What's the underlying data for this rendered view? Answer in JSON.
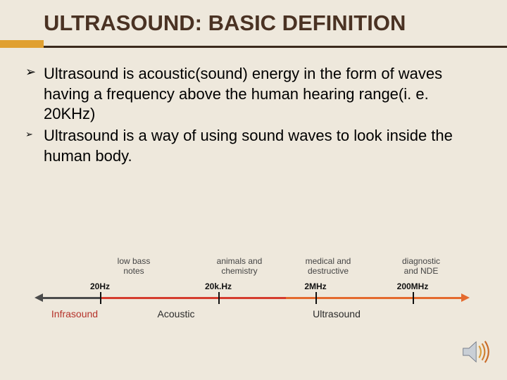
{
  "title": "ULTRASOUND: BASIC DEFINITION",
  "bullets": [
    "Ultrasound is acoustic(sound) energy in the form of waves having a frequency above the human hearing range(i. e. 20KHz)",
    " Ultrasound is a way of using sound waves to look inside the human body."
  ],
  "spectrum": {
    "axis_segments": [
      {
        "width_pct": 14,
        "color": "#4b4b4b"
      },
      {
        "width_pct": 44,
        "color": "#d53c2e"
      },
      {
        "width_pct": 42,
        "color": "#e46a2e"
      }
    ],
    "ticks": [
      {
        "pos_pct": 14,
        "label": "20Hz"
      },
      {
        "pos_pct": 42,
        "label": "20k.Hz"
      },
      {
        "pos_pct": 65,
        "label": "2MHz"
      },
      {
        "pos_pct": 88,
        "label": "200MHz"
      }
    ],
    "upper_labels": [
      {
        "pos_pct": 22,
        "line1": "low bass",
        "line2": "notes"
      },
      {
        "pos_pct": 47,
        "line1": "animals and",
        "line2": "chemistry"
      },
      {
        "pos_pct": 68,
        "line1": "medical and",
        "line2": "destructive"
      },
      {
        "pos_pct": 90,
        "line1": "diagnostic",
        "line2": "and NDE"
      }
    ],
    "region_labels": [
      {
        "pos_pct": 8,
        "text": "Infrasound",
        "color": "#b5322a"
      },
      {
        "pos_pct": 32,
        "text": "Acoustic",
        "color": "#2a2a2a"
      },
      {
        "pos_pct": 70,
        "text": "Ultrasound",
        "color": "#2a2a2a"
      }
    ]
  }
}
